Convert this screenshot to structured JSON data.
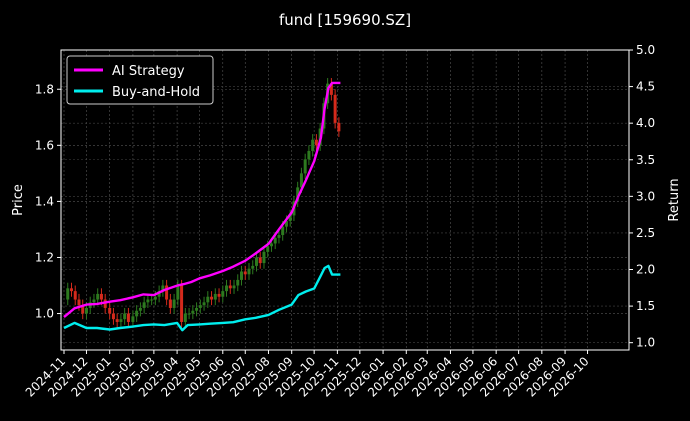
{
  "chart_data": {
    "type": "line",
    "title": "fund [159690.SZ]",
    "ylabel_left": "Price",
    "ylabel_right": "Return",
    "ylim_left": [
      0.87,
      1.94
    ],
    "ylim_right": [
      0.9,
      5.0
    ],
    "yticks_left": [
      "1.0",
      "1.2",
      "1.4",
      "1.6",
      "1.8"
    ],
    "yticks_right": [
      "1.0",
      "1.5",
      "2.0",
      "2.5",
      "3.0",
      "3.5",
      "4.0",
      "4.5",
      "5.0"
    ],
    "x_tick_labels": [
      "2024-11",
      "2024-12",
      "2025-01",
      "2025-02",
      "2025-03",
      "2025-04",
      "2025-05",
      "2025-06",
      "2025-07",
      "2025-08",
      "2025-09",
      "2025-10",
      "2025-11",
      "2025-12",
      "2026-01",
      "2026-02",
      "2026-03",
      "2026-04",
      "2026-05",
      "2026-06",
      "2026-07",
      "2026-08",
      "2026-09",
      "2026-10"
    ],
    "x_range": [
      "2024-11-01",
      "2026-10-31"
    ],
    "grid": true,
    "legend_position": "top-left",
    "series": [
      {
        "name": "AI Strategy",
        "axis": "right",
        "color": "#ff00ff",
        "x": [
          "2024-11-01",
          "2024-11-15",
          "2024-12-01",
          "2024-12-15",
          "2025-01-01",
          "2025-01-15",
          "2025-02-01",
          "2025-02-15",
          "2025-03-01",
          "2025-03-15",
          "2025-04-01",
          "2025-04-10",
          "2025-04-20",
          "2025-05-01",
          "2025-05-15",
          "2025-06-01",
          "2025-06-15",
          "2025-07-01",
          "2025-07-15",
          "2025-08-01",
          "2025-08-15",
          "2025-09-01",
          "2025-09-10",
          "2025-09-20",
          "2025-10-01",
          "2025-10-10",
          "2025-10-15",
          "2025-10-20",
          "2025-10-25",
          "2025-11-01",
          "2025-11-05"
        ],
        "values": [
          1.35,
          1.47,
          1.52,
          1.53,
          1.56,
          1.58,
          1.62,
          1.66,
          1.65,
          1.72,
          1.78,
          1.8,
          1.83,
          1.88,
          1.92,
          1.98,
          2.04,
          2.12,
          2.22,
          2.35,
          2.55,
          2.78,
          3.0,
          3.22,
          3.48,
          3.8,
          4.2,
          4.48,
          4.55,
          4.55,
          4.55
        ]
      },
      {
        "name": "Buy-and-Hold",
        "axis": "right",
        "color": "#00eeee",
        "x": [
          "2024-11-01",
          "2024-11-15",
          "2024-12-01",
          "2024-12-15",
          "2025-01-01",
          "2025-01-15",
          "2025-02-01",
          "2025-02-15",
          "2025-03-01",
          "2025-03-15",
          "2025-04-01",
          "2025-04-08",
          "2025-04-15",
          "2025-05-01",
          "2025-05-15",
          "2025-06-01",
          "2025-06-15",
          "2025-07-01",
          "2025-07-15",
          "2025-08-01",
          "2025-08-15",
          "2025-09-01",
          "2025-09-10",
          "2025-09-20",
          "2025-10-01",
          "2025-10-10",
          "2025-10-15",
          "2025-10-20",
          "2025-10-25",
          "2025-11-01",
          "2025-11-05"
        ],
        "values": [
          1.2,
          1.27,
          1.2,
          1.2,
          1.18,
          1.2,
          1.22,
          1.24,
          1.25,
          1.24,
          1.27,
          1.17,
          1.24,
          1.25,
          1.26,
          1.27,
          1.28,
          1.32,
          1.34,
          1.38,
          1.45,
          1.52,
          1.65,
          1.7,
          1.74,
          1.92,
          2.02,
          2.05,
          1.93,
          1.93,
          1.93
        ]
      },
      {
        "name": "",
        "type": "candlestick",
        "axis": "left",
        "up_color": "#2d7a1f",
        "down_color": "#d42a1c",
        "x": [
          "2024-11-01",
          "2024-11-06",
          "2024-11-11",
          "2024-11-16",
          "2024-11-21",
          "2024-11-26",
          "2024-12-01",
          "2024-12-06",
          "2024-12-11",
          "2024-12-16",
          "2024-12-21",
          "2024-12-26",
          "2025-01-01",
          "2025-01-06",
          "2025-01-11",
          "2025-01-16",
          "2025-01-21",
          "2025-01-26",
          "2025-02-01",
          "2025-02-06",
          "2025-02-11",
          "2025-02-16",
          "2025-02-21",
          "2025-02-26",
          "2025-03-03",
          "2025-03-08",
          "2025-03-13",
          "2025-03-18",
          "2025-03-23",
          "2025-03-28",
          "2025-04-02",
          "2025-04-07",
          "2025-04-12",
          "2025-04-17",
          "2025-04-22",
          "2025-04-27",
          "2025-05-02",
          "2025-05-07",
          "2025-05-12",
          "2025-05-17",
          "2025-05-22",
          "2025-05-27",
          "2025-06-01",
          "2025-06-06",
          "2025-06-11",
          "2025-06-16",
          "2025-06-21",
          "2025-06-26",
          "2025-07-01",
          "2025-07-06",
          "2025-07-11",
          "2025-07-16",
          "2025-07-21",
          "2025-07-26",
          "2025-07-31",
          "2025-08-05",
          "2025-08-10",
          "2025-08-15",
          "2025-08-20",
          "2025-08-25",
          "2025-08-30",
          "2025-09-04",
          "2025-09-09",
          "2025-09-14",
          "2025-09-19",
          "2025-09-24",
          "2025-09-29",
          "2025-10-04",
          "2025-10-09",
          "2025-10-14",
          "2025-10-19",
          "2025-10-24",
          "2025-10-29",
          "2025-11-03"
        ],
        "values": [
          1.05,
          1.09,
          1.08,
          1.05,
          1.03,
          1.0,
          1.02,
          1.04,
          1.05,
          1.07,
          1.05,
          1.02,
          1.0,
          0.98,
          0.97,
          0.98,
          1.0,
          0.97,
          0.99,
          1.01,
          1.02,
          1.04,
          1.05,
          1.05,
          1.06,
          1.08,
          1.1,
          1.05,
          1.02,
          1.05,
          1.1,
          0.97,
          1.0,
          1.0,
          1.01,
          1.02,
          1.03,
          1.04,
          1.06,
          1.05,
          1.07,
          1.06,
          1.08,
          1.1,
          1.09,
          1.1,
          1.12,
          1.15,
          1.14,
          1.16,
          1.17,
          1.2,
          1.18,
          1.22,
          1.24,
          1.25,
          1.27,
          1.28,
          1.31,
          1.33,
          1.35,
          1.4,
          1.45,
          1.5,
          1.55,
          1.58,
          1.62,
          1.6,
          1.66,
          1.75,
          1.82,
          1.78,
          1.68,
          1.65
        ]
      }
    ]
  }
}
